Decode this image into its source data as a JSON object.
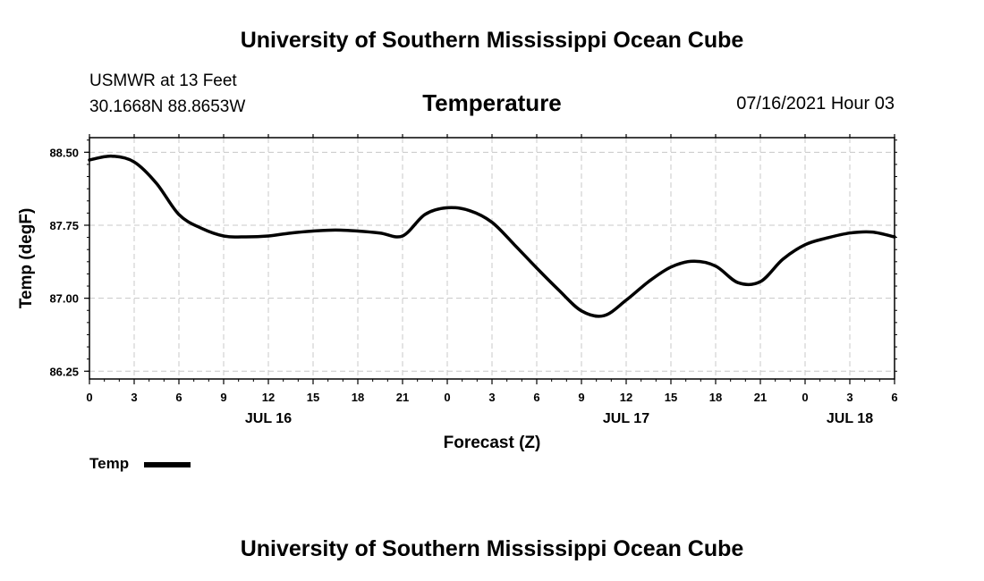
{
  "header": {
    "title": "University of Southern Mississippi Ocean Cube",
    "station_line1": "USMWR at 13 Feet",
    "station_line2": "30.1668N  88.8653W",
    "datetime": "07/16/2021 Hour 03"
  },
  "footer": {
    "title": "University of Southern Mississippi Ocean Cube"
  },
  "legend": {
    "label": "Temp"
  },
  "colors": {
    "line": "#000000",
    "grid": "#c8c8c8",
    "axis": "#000000"
  },
  "chart_data": {
    "type": "line",
    "title": "Temperature",
    "xlabel": "Forecast (Z)",
    "ylabel": "Temp (degF)",
    "xlim": [
      0,
      54
    ],
    "ylim": [
      86.17,
      88.65
    ],
    "x_ticks": [
      0,
      3,
      6,
      9,
      12,
      15,
      18,
      21,
      24,
      27,
      30,
      33,
      36,
      39,
      42,
      45,
      48,
      51,
      54
    ],
    "x_tick_labels": [
      "0",
      "3",
      "6",
      "9",
      "12",
      "15",
      "18",
      "21",
      "0",
      "3",
      "6",
      "9",
      "12",
      "15",
      "18",
      "21",
      "0",
      "3",
      "6"
    ],
    "date_labels": [
      {
        "x": 12,
        "label": "JUL 16"
      },
      {
        "x": 36,
        "label": "JUL 17"
      },
      {
        "x": 51,
        "label": "JUL 18"
      }
    ],
    "y_ticks": [
      86.25,
      87.0,
      87.75,
      88.5
    ],
    "y_tick_labels": [
      "86.25",
      "87.00",
      "87.75",
      "88.50"
    ],
    "grid": true,
    "legend_position": "bottom-left",
    "series": [
      {
        "name": "Temp",
        "x": [
          0,
          1.5,
          3,
          4.5,
          6,
          7.5,
          9,
          10.5,
          12,
          13.5,
          15,
          16.5,
          18,
          19.5,
          21,
          22.5,
          24,
          25.5,
          27,
          28.5,
          30,
          31.5,
          33,
          34.5,
          36,
          37.5,
          39,
          40.5,
          42,
          43.5,
          45,
          46.5,
          48,
          49.5,
          51,
          52.5,
          54
        ],
        "values": [
          88.42,
          88.46,
          88.4,
          88.18,
          87.86,
          87.72,
          87.64,
          87.63,
          87.64,
          87.67,
          87.69,
          87.7,
          87.69,
          87.67,
          87.64,
          87.86,
          87.93,
          87.9,
          87.78,
          87.55,
          87.31,
          87.08,
          86.87,
          86.82,
          86.98,
          87.17,
          87.32,
          87.38,
          87.33,
          87.16,
          87.17,
          87.4,
          87.55,
          87.62,
          87.67,
          87.68,
          87.63
        ]
      }
    ]
  }
}
